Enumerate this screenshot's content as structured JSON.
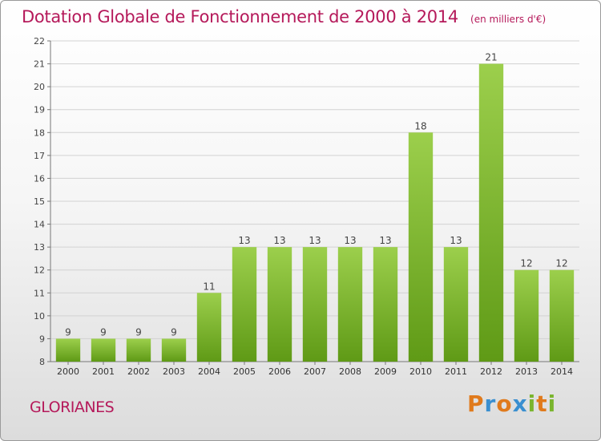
{
  "header": {
    "title": "Dotation Globale de Fonctionnement de 2000 à 2014",
    "unit": "(en milliers d'€)"
  },
  "footer": {
    "commune": "GLORIANES",
    "logo_text": "Proxiti",
    "logo_colors": [
      "#e07a1c",
      "#3a8fd0",
      "#e07a1c",
      "#3a8fd0",
      "#7ab52e",
      "#e07a1c",
      "#7ab52e"
    ]
  },
  "colors": {
    "bar_top": "#9ccf4c",
    "bar_bottom": "#5f9a16",
    "grid": "#d2d2d2",
    "accent": "#b5195a"
  },
  "chart_data": {
    "type": "bar",
    "categories": [
      "2000",
      "2001",
      "2002",
      "2003",
      "2004",
      "2005",
      "2006",
      "2007",
      "2008",
      "2009",
      "2010",
      "2011",
      "2012",
      "2013",
      "2014"
    ],
    "values": [
      9,
      9,
      9,
      9,
      11,
      13,
      13,
      13,
      13,
      13,
      18,
      13,
      21,
      12,
      12
    ],
    "ylim": [
      8,
      22
    ],
    "yticks": [
      8,
      9,
      10,
      11,
      12,
      13,
      14,
      15,
      16,
      17,
      18,
      19,
      20,
      21,
      22
    ],
    "grid": true,
    "data_labels": true
  }
}
